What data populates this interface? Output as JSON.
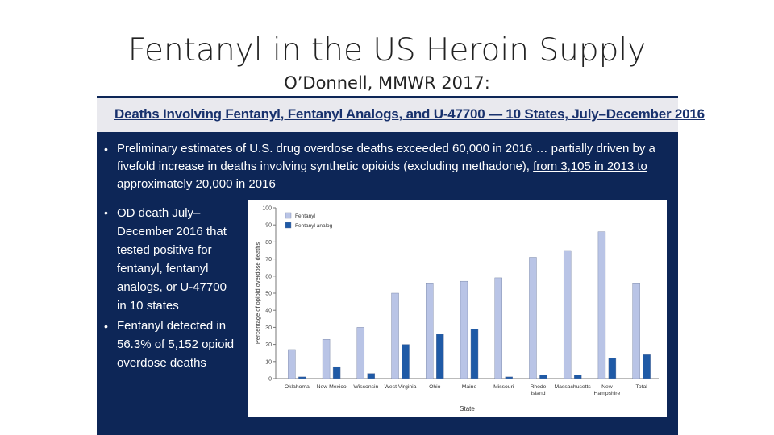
{
  "slide": {
    "title": "Fentanyl in the US Heroin Supply",
    "subtitle": "O’Donnell, MMWR 2017:"
  },
  "panel": {
    "header": "Deaths Involving Fentanyl, Fentanyl Analogs, and U-47700 — 10 States, July–December 2016",
    "bullet1_text": "Preliminary estimates of U.S. drug overdose deaths exceeded 60,000 in 2016 … partially driven by a fivefold increase in deaths involving synthetic opioids (excluding methadone), ",
    "bullet1_underlined": "from 3,105 in 2013 to approximately 20,000 in 2016",
    "bullet2": "OD death July–December 2016 that tested positive for fentanyl, fentanyl analogs, or U-47700 in 10 states",
    "bullet3": "Fentanyl detected in 56.3% of 5,152 opioid overdose deaths"
  },
  "colors": {
    "panel_bg": "#0d2657",
    "fentanyl": "#b9c4e6",
    "analog": "#1f5aa6"
  },
  "chart_data": {
    "type": "bar",
    "xlabel": "State",
    "ylabel": "Percentage of opioid overdose deaths",
    "ylim": [
      0,
      100
    ],
    "yticks": [
      0,
      10,
      20,
      30,
      40,
      50,
      60,
      70,
      80,
      90,
      100
    ],
    "categories": [
      "Oklahoma",
      "New Mexico",
      "Wisconsin",
      "West Virginia",
      "Ohio",
      "Maine",
      "Missouri",
      "Rhode Island",
      "Massachusetts",
      "New Hampshire",
      "Total"
    ],
    "series": [
      {
        "name": "Fentanyl",
        "values": [
          17,
          23,
          30,
          50,
          56,
          57,
          59,
          71,
          75,
          86,
          56
        ]
      },
      {
        "name": "Fentanyl analog",
        "values": [
          1,
          7,
          3,
          20,
          26,
          29,
          1,
          2,
          2,
          12,
          14
        ]
      }
    ]
  }
}
